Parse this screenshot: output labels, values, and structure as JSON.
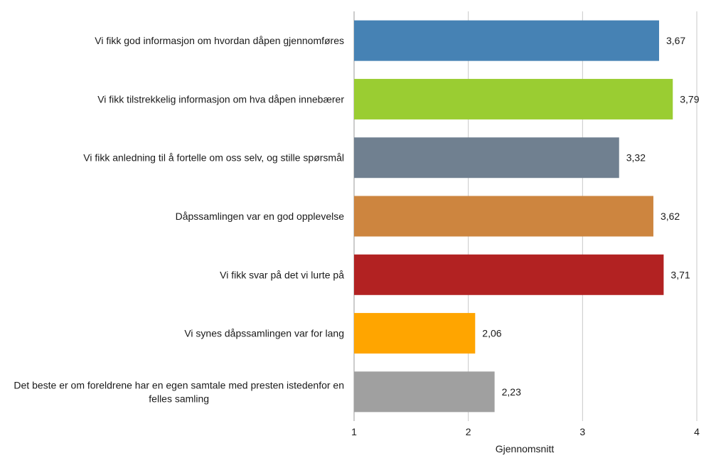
{
  "chart_data": {
    "type": "bar",
    "orientation": "horizontal",
    "title": "",
    "xlabel": "Gjennomsnitt",
    "ylabel": "",
    "xlim": [
      1,
      4
    ],
    "x_ticks": [
      "1",
      "2",
      "3",
      "4"
    ],
    "grid": true,
    "legend": "none",
    "categories": [
      [
        "Vi fikk god informasjon om hvordan dåpen gjennomføres"
      ],
      [
        "Vi fikk tilstrekkelig informasjon om hva dåpen innebærer"
      ],
      [
        "Vi fikk anledning til å fortelle om oss selv, og stille spørsmål"
      ],
      [
        "Dåpssamlingen var en god opplevelse"
      ],
      [
        "Vi fikk svar på det vi lurte på"
      ],
      [
        "Vi synes dåpssamlingen var for lang"
      ],
      [
        "Det beste er om foreldrene har en egen samtale med presten istedenfor en",
        "felles samling"
      ]
    ],
    "values": [
      3.67,
      3.79,
      3.32,
      3.62,
      3.71,
      2.06,
      2.23
    ],
    "value_labels": [
      "3,67",
      "3,79",
      "3,32",
      "3,62",
      "3,71",
      "2,06",
      "2,23"
    ],
    "colors": [
      "#4682b4",
      "#9acd32",
      "#708090",
      "#cd853f",
      "#b22222",
      "#ffa500",
      "#a0a0a0"
    ]
  }
}
